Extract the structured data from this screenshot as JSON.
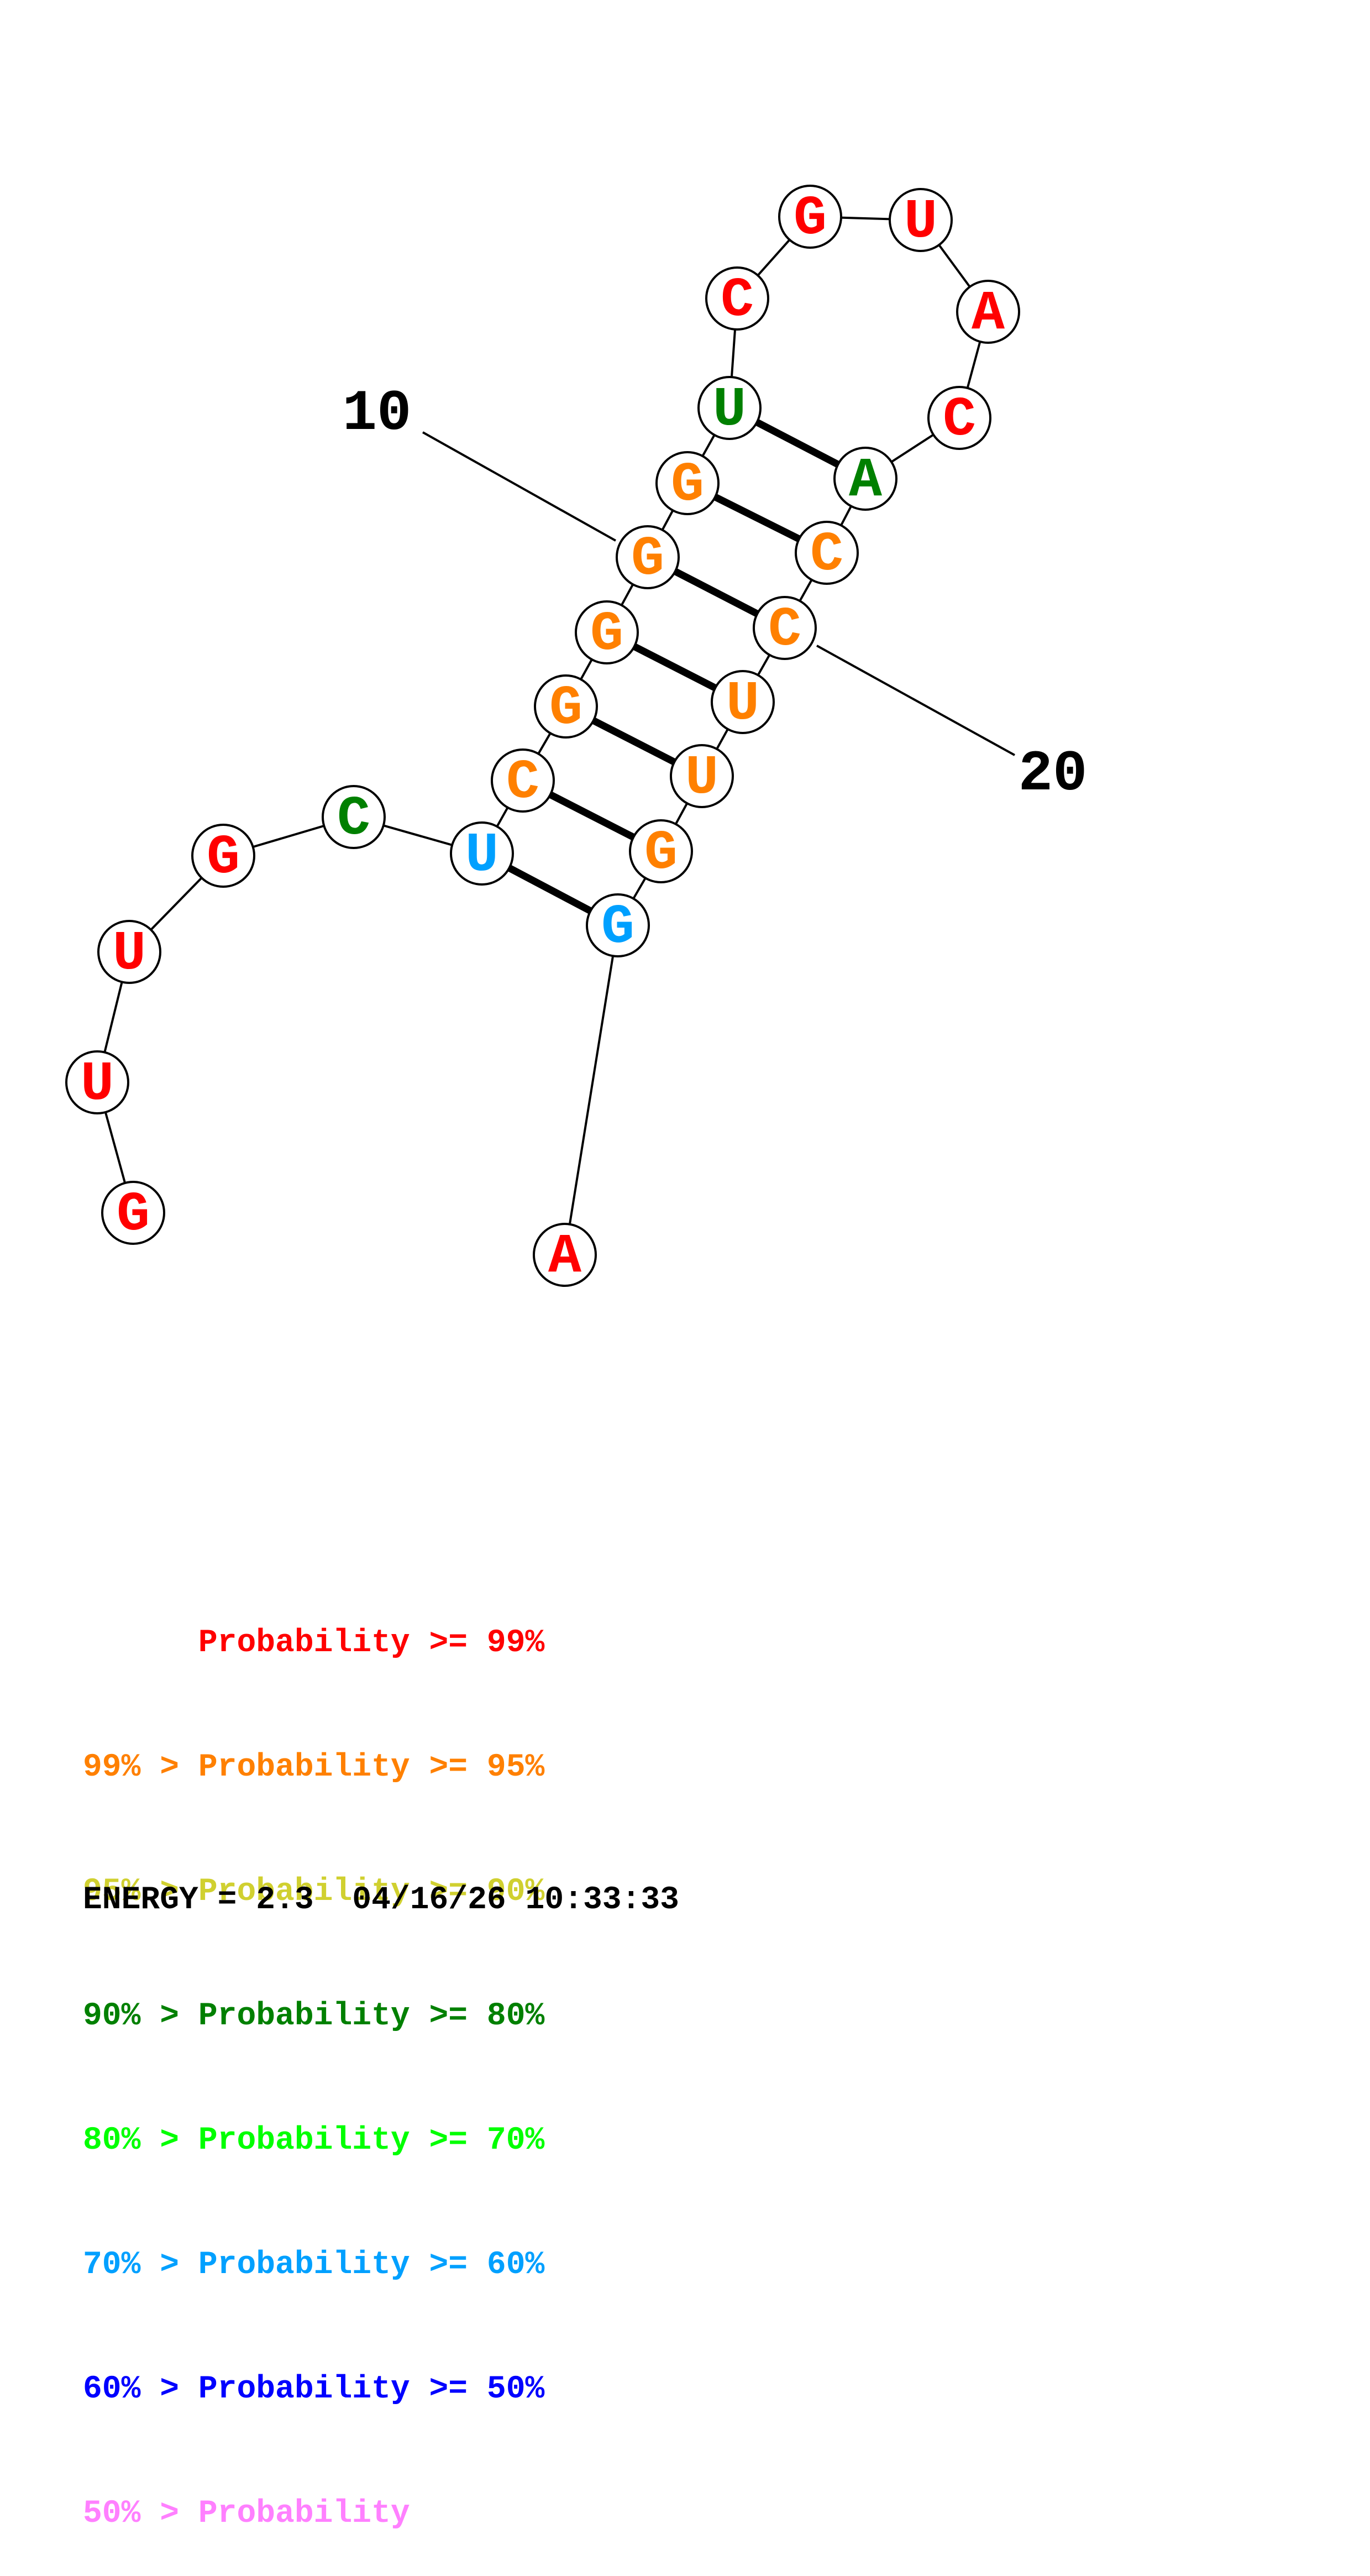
{
  "sequence": [
    {
      "index": 1,
      "base": "G",
      "color": "#ff0000"
    },
    {
      "index": 2,
      "base": "U",
      "color": "#ff0000"
    },
    {
      "index": 3,
      "base": "U",
      "color": "#ff0000"
    },
    {
      "index": 4,
      "base": "G",
      "color": "#ff0000"
    },
    {
      "index": 5,
      "base": "C",
      "color": "#008000"
    },
    {
      "index": 6,
      "base": "U",
      "color": "#00a0ff"
    },
    {
      "index": 7,
      "base": "C",
      "color": "#ff8000"
    },
    {
      "index": 8,
      "base": "G",
      "color": "#ff8000"
    },
    {
      "index": 9,
      "base": "G",
      "color": "#ff8000"
    },
    {
      "index": 10,
      "base": "G",
      "color": "#ff8000"
    },
    {
      "index": 11,
      "base": "G",
      "color": "#ff8000"
    },
    {
      "index": 12,
      "base": "U",
      "color": "#008000"
    },
    {
      "index": 13,
      "base": "C",
      "color": "#ff0000"
    },
    {
      "index": 14,
      "base": "G",
      "color": "#ff0000"
    },
    {
      "index": 15,
      "base": "U",
      "color": "#ff0000"
    },
    {
      "index": 16,
      "base": "A",
      "color": "#ff0000"
    },
    {
      "index": 17,
      "base": "C",
      "color": "#ff0000"
    },
    {
      "index": 18,
      "base": "A",
      "color": "#008000"
    },
    {
      "index": 19,
      "base": "C",
      "color": "#ff8000"
    },
    {
      "index": 20,
      "base": "C",
      "color": "#ff8000"
    },
    {
      "index": 21,
      "base": "U",
      "color": "#ff8000"
    },
    {
      "index": 22,
      "base": "U",
      "color": "#ff8000"
    },
    {
      "index": 23,
      "base": "G",
      "color": "#ff8000"
    },
    {
      "index": 24,
      "base": "G",
      "color": "#00a0ff"
    },
    {
      "index": 25,
      "base": "A",
      "color": "#ff0000"
    }
  ],
  "pairs": [
    [
      6,
      24
    ],
    [
      7,
      23
    ],
    [
      8,
      22
    ],
    [
      9,
      21
    ],
    [
      10,
      20
    ],
    [
      11,
      19
    ],
    [
      12,
      18
    ]
  ],
  "position_labels": [
    {
      "index": 10,
      "text": "10"
    },
    {
      "index": 20,
      "text": "20"
    }
  ],
  "legend": [
    {
      "text": "      Probability >= 99%",
      "color": "#ff0000"
    },
    {
      "text": "99% > Probability >= 95%",
      "color": "#ff8000"
    },
    {
      "text": "95% > Probability >= 90%",
      "color": "#d0d030"
    },
    {
      "text": "90% > Probability >= 80%",
      "color": "#008000"
    },
    {
      "text": "80% > Probability >= 70%",
      "color": "#00ff00"
    },
    {
      "text": "70% > Probability >= 60%",
      "color": "#00a0ff"
    },
    {
      "text": "60% > Probability >= 50%",
      "color": "#0000ff"
    },
    {
      "text": "50% > Probability",
      "color": "#ff80ff"
    }
  ],
  "energy_line": "ENERGY = 2.3  04/16/26 10:33:33"
}
